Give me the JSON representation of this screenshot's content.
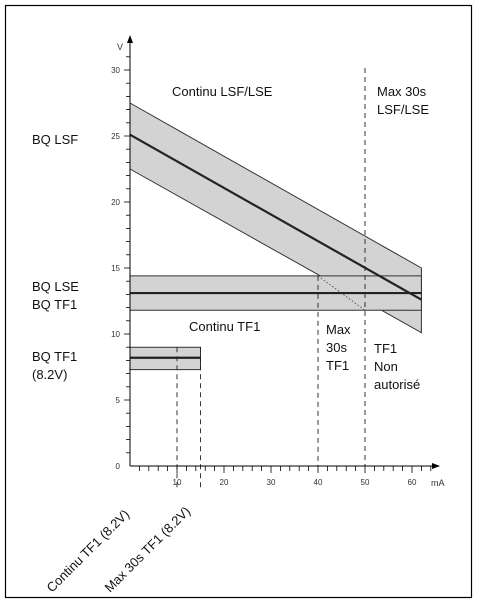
{
  "chart_data": {
    "type": "line",
    "title": "",
    "x_unit": "mA",
    "y_unit": "V",
    "xlim": [
      0,
      65
    ],
    "ylim": [
      0,
      32
    ],
    "x_ticks": [
      10,
      20,
      30,
      40,
      50,
      60
    ],
    "y_ticks": [
      0,
      5,
      10,
      15,
      20,
      25,
      30
    ],
    "minor_step": 2,
    "band_labels": {
      "bq_lsf": "BQ LSF",
      "bq_lse": "BQ LSE",
      "bq_tf1": "BQ TF1",
      "bq_tf1_82": "BQ TF1",
      "bq_tf1_82_sub": "(8.2V)"
    },
    "region_labels": {
      "continu_lsf": "Continu LSF/LSE",
      "max30_lsf_1": "Max 30s",
      "max30_lsf_2": "LSF/LSE",
      "continu_tf1": "Continu TF1",
      "max30_tf1_1": "Max",
      "max30_tf1_2": "30s",
      "max30_tf1_3": "TF1",
      "non_aut_1": "TF1",
      "non_aut_2": "Non",
      "non_aut_3": "autorisé"
    },
    "rotated_labels": {
      "continu_tf1_82": "Continu TF1 (8.2V)",
      "max30_tf1_82": "Max 30s TF1 (8.2V)"
    },
    "series": [
      {
        "name": "BQ LSF",
        "x": [
          0,
          62
        ],
        "y": [
          25.1,
          12.6
        ],
        "upper": [
          27.5,
          15
        ],
        "lower": [
          22.5,
          10.1
        ]
      },
      {
        "name": "BQ LSE / BQ TF1",
        "x": [
          0,
          62
        ],
        "y": [
          13.1,
          13.1
        ],
        "upper": [
          14.4,
          14.4
        ],
        "lower": [
          11.8,
          11.8
        ]
      },
      {
        "name": "BQ TF1 (8.2V)",
        "x": [
          0,
          15
        ],
        "y": [
          8.2,
          8.2
        ],
        "upper": [
          9,
          9
        ],
        "lower": [
          7.3,
          7.3
        ]
      }
    ],
    "vertical_limits_x": [
      10,
      15,
      40,
      50
    ],
    "colors": {
      "band_fill": "#d3d3d3",
      "line": "#222222",
      "frame": "#000000"
    }
  }
}
